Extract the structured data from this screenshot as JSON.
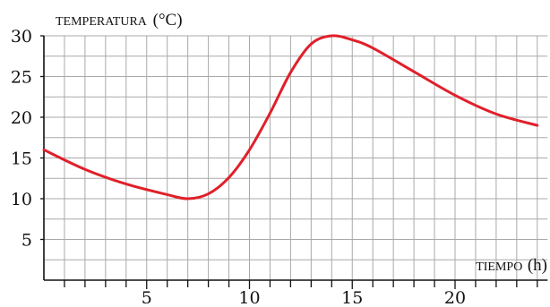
{
  "chart_data": {
    "type": "line",
    "xlabel": "TIEMPO",
    "xlabel_unit": "(h)",
    "ylabel": "TEMPERATURA",
    "ylabel_unit": "(°C)",
    "xlim": [
      0,
      24
    ],
    "ylim": [
      0,
      30
    ],
    "x_ticks": [
      "5",
      "10",
      "15",
      "20"
    ],
    "y_ticks": [
      "5",
      "10",
      "15",
      "20",
      "25",
      "30"
    ],
    "grid": true,
    "line_color": "#e0202a",
    "grid_color": "#a9a9a9",
    "series": [
      {
        "x": [
          0,
          2,
          4,
          6,
          7,
          8,
          9,
          10,
          11,
          12,
          13,
          14,
          15,
          16,
          18,
          20,
          22,
          24
        ],
        "y": [
          16,
          13.6,
          11.8,
          10.5,
          10,
          10.6,
          12.6,
          16,
          20.5,
          25.5,
          29,
          30,
          29.5,
          28.5,
          25.6,
          22.7,
          20.4,
          19
        ]
      }
    ]
  }
}
